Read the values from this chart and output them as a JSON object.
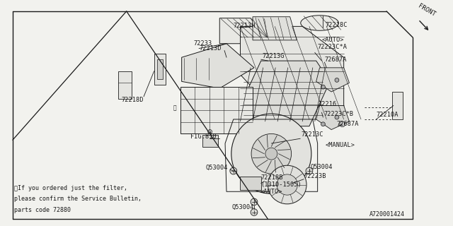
{
  "bg_color": "#f2f2ee",
  "line_color": "#1a1a1a",
  "diagram_id": "A720001424",
  "footnote_lines": [
    "※If you ordered just the filter,",
    "please confirm the Service Bulletin,",
    "parts code 72880"
  ]
}
